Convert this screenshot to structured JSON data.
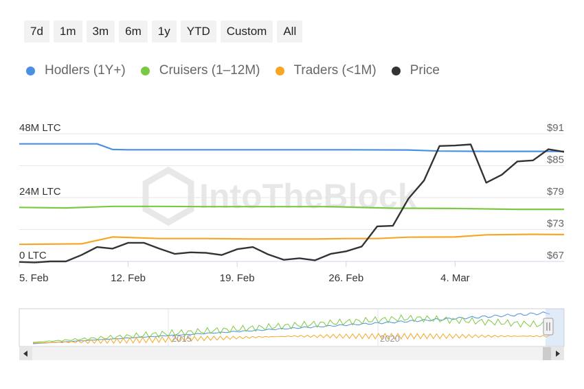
{
  "range_buttons": [
    "7d",
    "1m",
    "3m",
    "6m",
    "1y",
    "YTD",
    "Custom",
    "All"
  ],
  "legend": [
    {
      "label": "Hodlers (1Y+)",
      "color": "#4a90e2"
    },
    {
      "label": "Cruisers (1–12M)",
      "color": "#7ac943"
    },
    {
      "label": "Traders (<1M)",
      "color": "#f5a623"
    },
    {
      "label": "Price",
      "color": "#333333"
    }
  ],
  "chart_data": {
    "type": "line",
    "x_labels": [
      "5. Feb",
      "12. Feb",
      "19. Feb",
      "26. Feb",
      "4. Mar"
    ],
    "x_range": [
      5,
      40
    ],
    "left_axis": {
      "ticks": [
        "48M LTC",
        "24M LTC",
        "0 LTC"
      ],
      "ylim": [
        0,
        48
      ]
    },
    "right_axis": {
      "ticks": [
        "$91",
        "$85",
        "$79",
        "$73",
        "$67"
      ],
      "ylim": [
        67,
        91
      ]
    },
    "grid": true,
    "series": [
      {
        "name": "Hodlers (1Y+)",
        "axis": "left",
        "color": "#4a90e2",
        "x": [
          5,
          10,
          11,
          12,
          19,
          26,
          30,
          32,
          35,
          40
        ],
        "y": [
          44.2,
          44.2,
          42.1,
          42.0,
          42.0,
          42.0,
          41.9,
          41.5,
          41.4,
          41.4
        ]
      },
      {
        "name": "Cruisers (1–12M)",
        "axis": "left",
        "color": "#7ac943",
        "x": [
          5,
          8,
          11,
          14,
          17,
          21,
          25,
          29,
          33,
          37,
          40
        ],
        "y": [
          20.3,
          20.1,
          20.7,
          20.7,
          20.6,
          20.6,
          20.6,
          20.0,
          19.9,
          19.6,
          19.6
        ]
      },
      {
        "name": "Traders (<1M)",
        "axis": "left",
        "color": "#f5a623",
        "x": [
          5,
          9,
          11,
          14,
          17,
          20,
          24,
          26,
          28,
          30,
          33,
          35,
          38,
          40
        ],
        "y": [
          6.4,
          6.6,
          9.2,
          8.6,
          8.6,
          8.4,
          8.4,
          8.6,
          8.6,
          9.1,
          9.2,
          10.0,
          10.2,
          10.1
        ]
      },
      {
        "name": "Price",
        "axis": "right",
        "color": "#333333",
        "x": [
          5,
          6,
          7,
          8,
          9,
          10,
          11,
          12,
          13,
          14,
          15,
          16,
          17,
          18,
          19,
          20,
          21,
          22,
          23,
          24,
          25,
          26,
          27,
          28,
          29,
          30,
          31,
          32,
          33,
          34,
          35,
          36,
          37,
          38,
          39,
          40
        ],
        "y": [
          66.9,
          66.8,
          67.0,
          67.0,
          68.2,
          69.7,
          69.4,
          70.5,
          70.5,
          69.4,
          68.4,
          68.7,
          68.6,
          68.2,
          69.3,
          69.7,
          68.3,
          67.3,
          67.6,
          67.2,
          68.4,
          68.9,
          69.8,
          73.6,
          73.7,
          78.8,
          82.2,
          88.7,
          88.8,
          89.0,
          81.8,
          83.3,
          85.8,
          86.0,
          88.1,
          87.6
        ]
      }
    ],
    "navigator": {
      "axis_labels": [
        "2015",
        "2020"
      ]
    }
  }
}
